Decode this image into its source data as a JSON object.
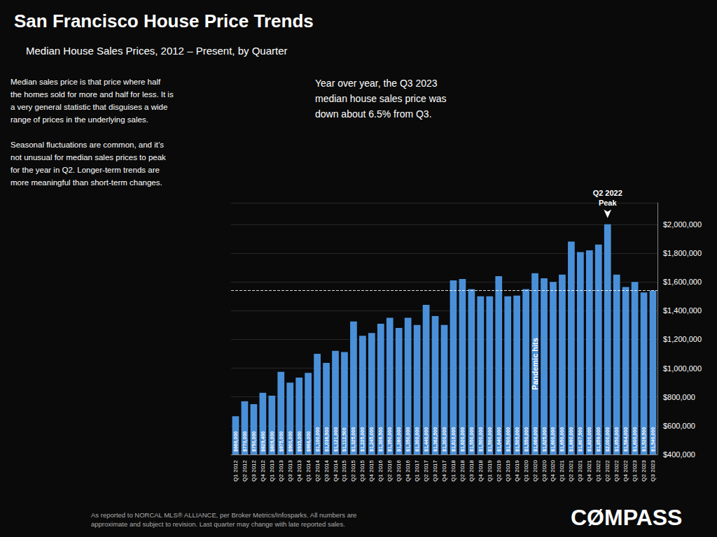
{
  "chart_data": {
    "type": "bar",
    "title": "San Francisco House Price Trends",
    "subtitle": "Median House Sales Prices, 2012 – Present, by Quarter",
    "notes": [
      "Median sales price is that price where half\nthe homes sold for more and half for less. It is\na very general statistic that disguises a wide\nrange of prices in the underlying sales.",
      "Seasonal fluctuations are common, and it’s\nnot unusual for median sales prices to peak\nfor the year in Q2. Longer-term trends are\nmore meaningful than short-term changes."
    ],
    "callout": "Year over year, the Q3 2023\nmedian house sales price was\ndown about 6.5% from Q3.",
    "footer": "As reported to NORCAL MLS® ALLIANCE, per Broker Metrics/Infosparks. All numbers are\napproximate and subject to revision. Last quarter may change with late reported sales.",
    "logo_text": "CØMPASS",
    "categories": [
      "Q1 2012",
      "Q2 2012",
      "Q3 2012",
      "Q4 2012",
      "Q1 2013",
      "Q2 2013",
      "Q3 2013",
      "Q4 2013",
      "Q1 2014",
      "Q2 2014",
      "Q3 2014",
      "Q4 2014",
      "Q1 2015",
      "Q2 2015",
      "Q3 2015",
      "Q4 2015",
      "Q1 2016",
      "Q2 2016",
      "Q3 2016",
      "Q4 2016",
      "Q1 2017",
      "Q2 2017",
      "Q3 2017",
      "Q4 2017",
      "Q1 2018",
      "Q2 2018",
      "Q3 2018",
      "Q4 2018",
      "Q1 2019",
      "Q2 2019",
      "Q3 2019",
      "Q4 2019",
      "Q1 2020",
      "Q2 2020",
      "Q3 2020",
      "Q4 2020",
      "Q1 2021",
      "Q2 2021",
      "Q3 2021",
      "Q4 2021",
      "Q1 2022",
      "Q2 2022",
      "Q3 2022",
      "Q4 2022",
      "Q1 2023",
      "Q2 2023",
      "Q3 2023"
    ],
    "values": [
      666000,
      770000,
      750000,
      829400,
      809000,
      975000,
      900000,
      935000,
      968000,
      1100000,
      1036500,
      1121000,
      1112500,
      1325000,
      1225000,
      1245000,
      1308500,
      1350000,
      1280000,
      1350000,
      1300000,
      1440000,
      1362500,
      1300000,
      1610000,
      1620000,
      1550000,
      1500000,
      1500000,
      1640000,
      1500000,
      1505000,
      1550000,
      1660000,
      1625000,
      1600000,
      1650000,
      1880000,
      1807500,
      1820000,
      1859000,
      2000000,
      1650000,
      1564000,
      1600000,
      1526500,
      1540000
    ],
    "value_labels": [
      "$666,000",
      "$770,000",
      "$750,000",
      "$829,400",
      "$809,000",
      "$975,000",
      "$900,000",
      "$935,000",
      "$968,000",
      "$1,100,000",
      "$1,036,500",
      "$1,121,000",
      "$1,112,500",
      "$1,325,000",
      "$1,225,000",
      "$1,245,000",
      "$1,308,500",
      "$1,350,000",
      "$1,280,000",
      "$1,350,000",
      "$1,300,000",
      "$1,440,000",
      "$1,362,500",
      "$1,300,000",
      "$1,610,000",
      "$1,620,000",
      "$1,550,000",
      "$1,500,000",
      "$1,500,000",
      "$1,640,000",
      "$1,500,000",
      "$1,505,000",
      "$1,550,000",
      "$1,660,000",
      "$1,625,000",
      "$1,600,000",
      "$1,650,000",
      "$1,880,000",
      "$1,807,500",
      "$1,820,000",
      "$1,859,000",
      "$2,000,000",
      "$1,650,000",
      "$1,564,000",
      "$1,600,000",
      "$1,526,500",
      "$1,540,000"
    ],
    "data_labels": true,
    "color": "#4a90d9",
    "ylim": [
      400000,
      2150000
    ],
    "yticks": [
      {
        "value": 400000,
        "label": "$400,000"
      },
      {
        "value": 600000,
        "label": "$600,000"
      },
      {
        "value": 800000,
        "label": "$800,000"
      },
      {
        "value": 1000000,
        "label": "$1,000,000"
      },
      {
        "value": 1200000,
        "label": "$1,200,000"
      },
      {
        "value": 1400000,
        "label": "$1,400,000"
      },
      {
        "value": 1600000,
        "label": "$1,600,000"
      },
      {
        "value": 1800000,
        "label": "$1,800,000"
      },
      {
        "value": 2000000,
        "label": "$2,000,000"
      }
    ],
    "grid": true,
    "reference_line": {
      "value": 1540000,
      "line_style": "dashed"
    },
    "annotations": [
      {
        "text": "Pandemic hits",
        "category": "Q2 2020",
        "position": "inside"
      },
      {
        "text": "Q2 2022\nPeak",
        "category": "Q2 2022",
        "position": "above",
        "arrow": true
      }
    ]
  }
}
